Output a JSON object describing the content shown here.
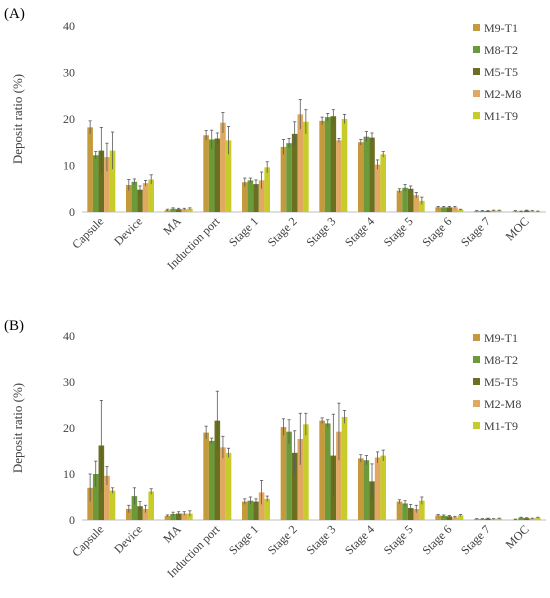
{
  "colors": {
    "M9-T1": "#c49a3c",
    "M8-T2": "#6b9a3a",
    "M5-T5": "#6a7020",
    "M2-M8": "#e0a860",
    "M1-T9": "#c8cc2a"
  },
  "chart_data": [
    {
      "panel_label": "(A)",
      "type": "bar",
      "ylabel": "Deposit ratio (%)",
      "ylim": [
        0,
        40
      ],
      "yticks": [
        0,
        10,
        20,
        30,
        40
      ],
      "legend_position": "right",
      "categories": [
        "Capsule",
        "Device",
        "MA",
        "Induction port",
        "Stage 1",
        "Stage 2",
        "Stage 3",
        "Stage 4",
        "Stage 5",
        "Stage 6",
        "Stage 7",
        "MOC"
      ],
      "series": [
        {
          "name": "M9-T1",
          "values": [
            18.2,
            5.8,
            0.4,
            16.5,
            6.4,
            14.0,
            19.6,
            15.0,
            4.6,
            1.0,
            0.2,
            0.2
          ],
          "errors": [
            1.4,
            1.2,
            0.2,
            1.0,
            0.9,
            1.6,
            0.8,
            0.6,
            0.4,
            0.2,
            0.1,
            0.1
          ]
        },
        {
          "name": "M8-T2",
          "values": [
            12.2,
            6.5,
            0.7,
            15.6,
            6.8,
            14.8,
            20.4,
            16.2,
            5.2,
            1.0,
            0.2,
            0.1
          ],
          "errors": [
            0.8,
            0.6,
            0.2,
            2.0,
            0.5,
            1.0,
            0.8,
            1.1,
            0.7,
            0.2,
            0.1,
            0.1
          ]
        },
        {
          "name": "M5-T5",
          "values": [
            13.2,
            4.8,
            0.6,
            15.8,
            6.0,
            16.8,
            20.6,
            16.0,
            5.0,
            1.0,
            0.2,
            0.3
          ],
          "errors": [
            5.0,
            0.8,
            0.2,
            1.2,
            0.9,
            2.6,
            1.4,
            1.0,
            0.6,
            0.2,
            0.1,
            0.1
          ]
        },
        {
          "name": "M2-M8",
          "values": [
            11.8,
            6.2,
            0.6,
            19.2,
            6.8,
            21.0,
            15.4,
            10.2,
            3.6,
            1.0,
            0.3,
            0.2
          ],
          "errors": [
            3.0,
            0.6,
            0.2,
            2.2,
            1.8,
            3.2,
            0.4,
            1.0,
            0.6,
            0.2,
            0.1,
            0.1
          ]
        },
        {
          "name": "M1-T9",
          "values": [
            13.2,
            7.0,
            0.7,
            15.4,
            9.6,
            19.4,
            20.0,
            12.4,
            2.4,
            0.5,
            0.3,
            0.1
          ],
          "errors": [
            4.0,
            1.0,
            0.2,
            3.0,
            1.2,
            2.6,
            1.0,
            0.6,
            0.8,
            0.1,
            0.1,
            0.1
          ]
        }
      ]
    },
    {
      "panel_label": "(B)",
      "type": "bar",
      "ylabel": "Deposit ratio (%)",
      "ylim": [
        0,
        40
      ],
      "yticks": [
        0,
        10,
        20,
        30,
        40
      ],
      "legend_position": "right",
      "categories": [
        "Capsule",
        "Device",
        "MA",
        "Induction port",
        "Stage 1",
        "Stage 2",
        "Stage 3",
        "Stage 4",
        "Stage 5",
        "Stage 6",
        "Stage 7",
        "MOC"
      ],
      "series": [
        {
          "name": "M9-T1",
          "values": [
            7.0,
            2.4,
            0.9,
            19.0,
            4.0,
            20.2,
            21.6,
            13.4,
            4.0,
            1.0,
            0.2,
            0.1
          ],
          "errors": [
            3.0,
            0.8,
            0.2,
            1.4,
            0.6,
            1.8,
            0.6,
            0.8,
            0.4,
            0.2,
            0.1,
            0.1
          ]
        },
        {
          "name": "M8-T2",
          "values": [
            10.0,
            5.2,
            1.3,
            17.2,
            4.2,
            19.2,
            21.0,
            13.0,
            3.6,
            0.9,
            0.2,
            0.5
          ],
          "errors": [
            2.8,
            1.8,
            0.4,
            0.6,
            0.8,
            2.6,
            0.8,
            1.0,
            0.6,
            0.2,
            0.1,
            0.1
          ]
        },
        {
          "name": "M5-T5",
          "values": [
            16.2,
            3.0,
            1.4,
            21.6,
            4.0,
            14.6,
            14.0,
            8.4,
            2.6,
            0.8,
            0.3,
            0.4
          ],
          "errors": [
            9.8,
            1.0,
            0.4,
            6.4,
            0.6,
            4.8,
            9.0,
            3.8,
            0.8,
            0.2,
            0.1,
            0.1
          ]
        },
        {
          "name": "M2-M8",
          "values": [
            9.6,
            2.4,
            1.4,
            15.8,
            6.0,
            17.6,
            19.2,
            13.6,
            2.4,
            0.6,
            0.2,
            0.3
          ],
          "errors": [
            2.0,
            0.8,
            0.4,
            2.4,
            2.6,
            5.6,
            6.2,
            1.2,
            0.8,
            0.2,
            0.1,
            0.1
          ]
        },
        {
          "name": "M1-T9",
          "values": [
            6.4,
            6.2,
            1.4,
            14.6,
            4.6,
            20.8,
            22.4,
            14.0,
            4.2,
            1.0,
            0.3,
            0.5
          ],
          "errors": [
            0.6,
            0.6,
            0.6,
            1.0,
            0.6,
            2.4,
            1.4,
            1.2,
            0.8,
            0.2,
            0.1,
            0.1
          ]
        }
      ]
    }
  ]
}
